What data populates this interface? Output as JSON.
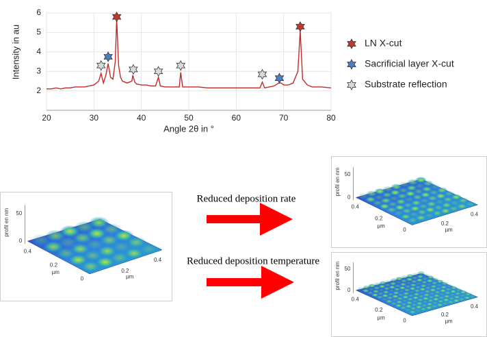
{
  "chart_data": {
    "type": "line",
    "xlabel": "Angle 2θ in °",
    "ylabel": "Intensity in au",
    "x": [
      20,
      21,
      22,
      23,
      24,
      25,
      26,
      27,
      28,
      29,
      30,
      31,
      31.5,
      32,
      32.5,
      33,
      33.5,
      34,
      34.5,
      34.8,
      35.2,
      35.6,
      36,
      37,
      38,
      38.2,
      38.6,
      39,
      40,
      41,
      42,
      43,
      43.6,
      44,
      45,
      46,
      47,
      48,
      48.3,
      48.7,
      49,
      50,
      52,
      54,
      56,
      58,
      60,
      62,
      64,
      65,
      65.5,
      66,
      67,
      68,
      69,
      69.5,
      70,
      71,
      72,
      73,
      73.5,
      74,
      75,
      76,
      78,
      80
    ],
    "series": [
      {
        "color": "#c62828",
        "values": [
          2.1,
          2.1,
          2.15,
          2.1,
          2.15,
          2.15,
          2.2,
          2.2,
          2.2,
          2.25,
          2.3,
          2.5,
          2.9,
          2.4,
          2.8,
          3.4,
          2.7,
          2.6,
          3.5,
          5.7,
          3.3,
          2.7,
          2.5,
          2.4,
          2.5,
          2.8,
          2.45,
          2.35,
          2.3,
          2.3,
          2.25,
          2.25,
          2.7,
          2.25,
          2.2,
          2.2,
          2.2,
          2.2,
          2.95,
          2.2,
          2.2,
          2.2,
          2.2,
          2.15,
          2.15,
          2.15,
          2.15,
          2.15,
          2.15,
          2.15,
          2.45,
          2.15,
          2.2,
          2.25,
          2.4,
          2.4,
          2.3,
          2.3,
          2.4,
          3.0,
          5.1,
          2.6,
          2.3,
          2.2,
          2.2,
          2.15
        ]
      }
    ],
    "markers": [
      {
        "x": 31.5,
        "y": 3.3,
        "color": "#d9d9d9"
      },
      {
        "x": 33,
        "y": 3.75,
        "color": "#4a7fc1"
      },
      {
        "x": 34.8,
        "y": 5.8,
        "color": "#c0392b"
      },
      {
        "x": 38.3,
        "y": 3.1,
        "color": "#d9d9d9"
      },
      {
        "x": 43.6,
        "y": 3.0,
        "color": "#d9d9d9"
      },
      {
        "x": 48.3,
        "y": 3.3,
        "color": "#d9d9d9"
      },
      {
        "x": 65.5,
        "y": 2.85,
        "color": "#d9d9d9"
      },
      {
        "x": 69.1,
        "y": 2.65,
        "color": "#4a7fc1"
      },
      {
        "x": 73.5,
        "y": 5.3,
        "color": "#c0392b"
      }
    ],
    "legend": [
      {
        "name": "LN X-cut",
        "color": "#c0392b"
      },
      {
        "name": "Sacrificial layer X-cut",
        "color": "#4a7fc1"
      },
      {
        "name": "Substrate reflection",
        "color": "#d9d9d9"
      }
    ],
    "xlim": [
      20,
      80
    ],
    "xticks": [
      20,
      30,
      40,
      50,
      60,
      70,
      80
    ],
    "ylim": [
      1,
      6
    ],
    "yticks": [
      2,
      3,
      4,
      5,
      6
    ],
    "grid": true
  },
  "arrows": [
    "Reduced deposition rate",
    "Reduced deposition temperature"
  ],
  "surfaces": [
    {
      "zlabel": "profil en nm",
      "xlabel": "µm",
      "ylabel": "µm",
      "zticks": [
        "50",
        "0"
      ],
      "yticks": [
        "0.4",
        "0.2",
        "0"
      ],
      "xticks": [
        "0.2",
        "0.4"
      ]
    },
    {
      "zlabel": "profil en nm",
      "xlabel": "µm",
      "ylabel": "µm",
      "zticks": [
        "50",
        "0"
      ],
      "yticks": [
        "0.4",
        "0.2",
        "0"
      ],
      "xticks": [
        "0.2",
        "0.4"
      ]
    },
    {
      "zlabel": "profil en nm",
      "xlabel": "µm",
      "ylabel": "µm",
      "zticks": [
        "50",
        "0"
      ],
      "yticks": [
        "0.4",
        "0.2",
        "0"
      ],
      "xticks": [
        "0.2",
        "0.4"
      ]
    }
  ]
}
